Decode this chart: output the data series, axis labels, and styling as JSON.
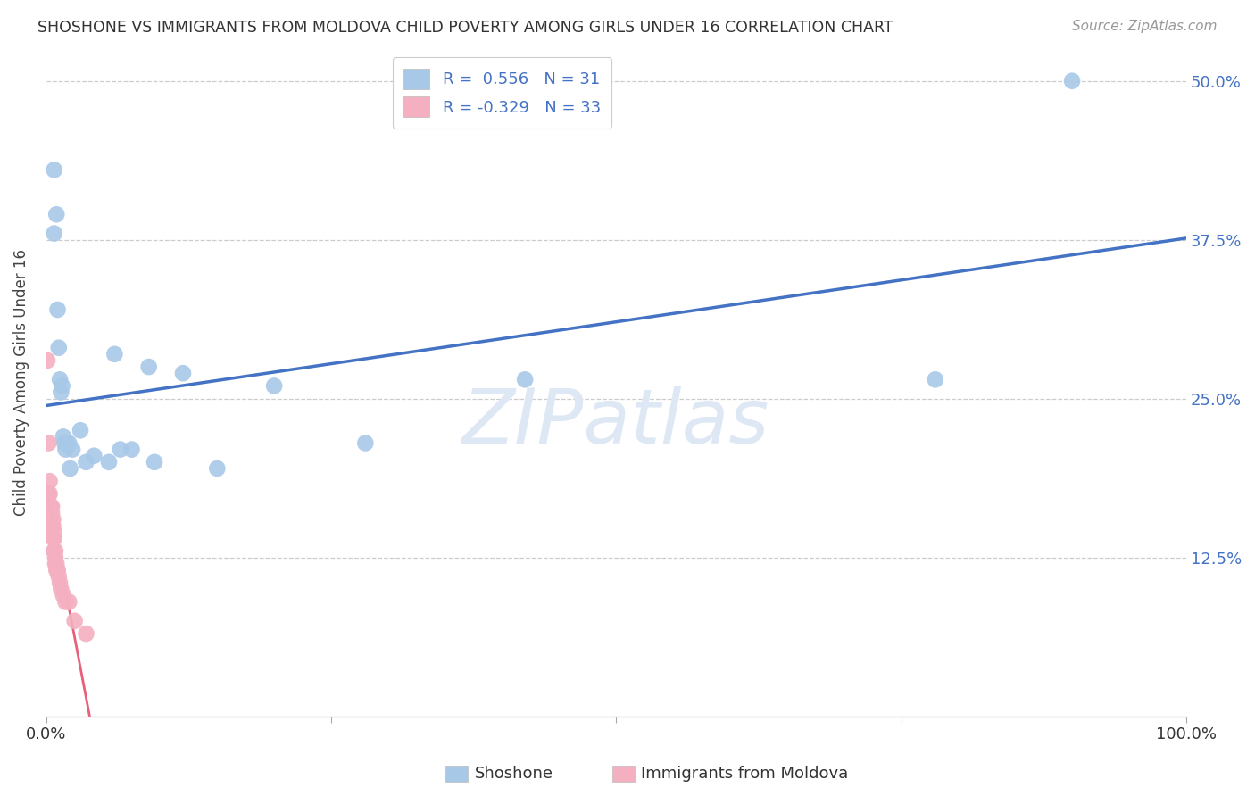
{
  "title": "SHOSHONE VS IMMIGRANTS FROM MOLDOVA CHILD POVERTY AMONG GIRLS UNDER 16 CORRELATION CHART",
  "source": "Source: ZipAtlas.com",
  "ylabel": "Child Poverty Among Girls Under 16",
  "shoshone_x": [
    0.007,
    0.007,
    0.009,
    0.01,
    0.011,
    0.012,
    0.013,
    0.014,
    0.015,
    0.016,
    0.017,
    0.018,
    0.02,
    0.021,
    0.023,
    0.03,
    0.035,
    0.042,
    0.055,
    0.06,
    0.065,
    0.075,
    0.09,
    0.095,
    0.12,
    0.15,
    0.2,
    0.28,
    0.42,
    0.78,
    0.9
  ],
  "shoshone_y": [
    0.43,
    0.38,
    0.395,
    0.32,
    0.29,
    0.265,
    0.255,
    0.26,
    0.22,
    0.215,
    0.21,
    0.215,
    0.215,
    0.195,
    0.21,
    0.225,
    0.2,
    0.205,
    0.2,
    0.285,
    0.21,
    0.21,
    0.275,
    0.2,
    0.27,
    0.195,
    0.26,
    0.215,
    0.265,
    0.265,
    0.5
  ],
  "moldova_x": [
    0.001,
    0.002,
    0.002,
    0.003,
    0.003,
    0.003,
    0.004,
    0.004,
    0.005,
    0.005,
    0.005,
    0.006,
    0.006,
    0.006,
    0.007,
    0.007,
    0.007,
    0.007,
    0.008,
    0.008,
    0.008,
    0.009,
    0.009,
    0.01,
    0.01,
    0.011,
    0.012,
    0.013,
    0.015,
    0.017,
    0.02,
    0.025,
    0.035
  ],
  "moldova_y": [
    0.28,
    0.215,
    0.175,
    0.185,
    0.175,
    0.165,
    0.165,
    0.155,
    0.165,
    0.16,
    0.15,
    0.155,
    0.15,
    0.14,
    0.145,
    0.14,
    0.13,
    0.13,
    0.13,
    0.125,
    0.12,
    0.12,
    0.115,
    0.115,
    0.115,
    0.11,
    0.105,
    0.1,
    0.095,
    0.09,
    0.09,
    0.075,
    0.065
  ],
  "shoshone_color": "#a8c8e8",
  "moldova_color": "#f4b0c0",
  "shoshone_line_color": "#4472c4",
  "moldova_line_color": "#e8607a",
  "watermark_text": "ZIPatlas",
  "watermark_color": "#dde8f4",
  "R_shoshone": 0.556,
  "N_shoshone": 31,
  "R_moldova": -0.329,
  "N_moldova": 33,
  "xlim": [
    0,
    1.0
  ],
  "ylim": [
    0,
    0.525
  ],
  "y_tick_positions": [
    0.125,
    0.25,
    0.375,
    0.5
  ],
  "y_tick_labels": [
    "12.5%",
    "25.0%",
    "37.5%",
    "50.0%"
  ],
  "x_tick_positions": [
    0.0,
    0.25,
    0.5,
    0.75,
    1.0
  ],
  "x_tick_labels": [
    "0.0%",
    "",
    "",
    "",
    "100.0%"
  ],
  "grid_color": "#cccccc",
  "background_color": "#ffffff",
  "figsize": [
    14.06,
    8.92
  ],
  "dpi": 100
}
